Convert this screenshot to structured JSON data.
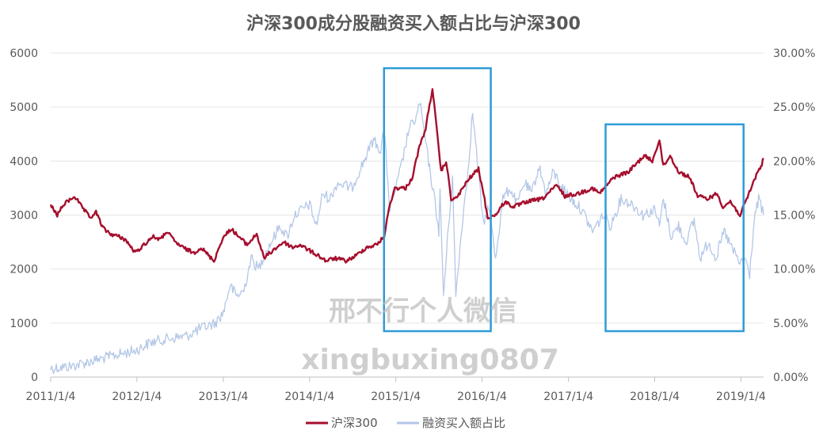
{
  "chart_data": {
    "type": "line",
    "title": "沪深300成分股融资买入额占比与沪深300",
    "x_ticks": [
      "2011/1/4",
      "2012/1/4",
      "2013/1/4",
      "2014/1/4",
      "2015/1/4",
      "2016/1/4",
      "2017/1/4",
      "2018/1/4",
      "2019/1/4"
    ],
    "x_range": [
      "2011/1/4",
      "2019/4/10"
    ],
    "y_left": {
      "range": [
        0,
        6000
      ],
      "ticks": [
        "0",
        "1000",
        "2000",
        "3000",
        "4000",
        "5000",
        "6000"
      ]
    },
    "y_right": {
      "range": [
        0,
        30
      ],
      "ticks": [
        "0.00%",
        "5.00%",
        "10.00%",
        "15.00%",
        "20.00%",
        "25.00%",
        "30.00%"
      ]
    },
    "legend_position": "bottom",
    "series": [
      {
        "name": "沪深300",
        "axis": "left",
        "color": "#a50f2d",
        "points": [
          [
            "2011/1/4",
            3180
          ],
          [
            "2011/2/1",
            3000
          ],
          [
            "2011/3/1",
            3200
          ],
          [
            "2011/4/15",
            3350
          ],
          [
            "2011/5/15",
            3150
          ],
          [
            "2011/6/20",
            2950
          ],
          [
            "2011/7/15",
            3050
          ],
          [
            "2011/8/15",
            2750
          ],
          [
            "2011/9/15",
            2650
          ],
          [
            "2011/10/20",
            2600
          ],
          [
            "2011/11/15",
            2550
          ],
          [
            "2011/12/28",
            2300
          ],
          [
            "2012/2/15",
            2500
          ],
          [
            "2012/3/10",
            2600
          ],
          [
            "2012/4/15",
            2550
          ],
          [
            "2012/5/8",
            2700
          ],
          [
            "2012/6/15",
            2500
          ],
          [
            "2012/7/15",
            2400
          ],
          [
            "2012/9/1",
            2300
          ],
          [
            "2012/10/1",
            2400
          ],
          [
            "2012/11/25",
            2150
          ],
          [
            "2012/12/30",
            2550
          ],
          [
            "2013/2/5",
            2750
          ],
          [
            "2013/3/10",
            2600
          ],
          [
            "2013/4/15",
            2450
          ],
          [
            "2013/5/25",
            2650
          ],
          [
            "2013/6/25",
            2200
          ],
          [
            "2013/7/20",
            2300
          ],
          [
            "2013/9/15",
            2500
          ],
          [
            "2013/10/25",
            2400
          ],
          [
            "2013/11/25",
            2450
          ],
          [
            "2013/12/31",
            2350
          ],
          [
            "2014/2/10",
            2250
          ],
          [
            "2014/3/15",
            2150
          ],
          [
            "2014/4/20",
            2200
          ],
          [
            "2014/6/10",
            2150
          ],
          [
            "2014/7/20",
            2250
          ],
          [
            "2014/9/1",
            2400
          ],
          [
            "2014/10/15",
            2450
          ],
          [
            "2014/11/15",
            2600
          ],
          [
            "2014/12/10",
            3200
          ],
          [
            "2014/12/31",
            3500
          ],
          [
            "2015/2/15",
            3500
          ],
          [
            "2015/3/15",
            3700
          ],
          [
            "2015/4/10",
            4200
          ],
          [
            "2015/5/10",
            4600
          ],
          [
            "2015/6/8",
            5350
          ],
          [
            "2015/6/28",
            4500
          ],
          [
            "2015/7/15",
            3800
          ],
          [
            "2015/8/5",
            4000
          ],
          [
            "2015/8/26",
            3300
          ],
          [
            "2015/9/15",
            3300
          ],
          [
            "2015/10/15",
            3500
          ],
          [
            "2015/11/15",
            3700
          ],
          [
            "2015/12/20",
            3850
          ],
          [
            "2016/1/10",
            3400
          ],
          [
            "2016/1/28",
            2950
          ],
          [
            "2016/3/1",
            3000
          ],
          [
            "2016/4/10",
            3250
          ],
          [
            "2016/5/15",
            3150
          ],
          [
            "2016/7/15",
            3250
          ],
          [
            "2016/9/15",
            3300
          ],
          [
            "2016/11/15",
            3550
          ],
          [
            "2016/12/20",
            3350
          ],
          [
            "2017/2/15",
            3400
          ],
          [
            "2017/4/15",
            3500
          ],
          [
            "2017/5/15",
            3400
          ],
          [
            "2017/7/15",
            3700
          ],
          [
            "2017/9/15",
            3800
          ],
          [
            "2017/11/20",
            4100
          ],
          [
            "2017/12/25",
            4000
          ],
          [
            "2018/1/24",
            4400
          ],
          [
            "2018/2/9",
            3900
          ],
          [
            "2018/3/10",
            4100
          ],
          [
            "2018/4/15",
            3800
          ],
          [
            "2018/6/1",
            3700
          ],
          [
            "2018/7/5",
            3350
          ],
          [
            "2018/8/15",
            3300
          ],
          [
            "2018/9/25",
            3400
          ],
          [
            "2018/10/20",
            3150
          ],
          [
            "2018/11/20",
            3250
          ],
          [
            "2018/12/31",
            3000
          ],
          [
            "2019/1/20",
            3200
          ],
          [
            "2019/2/25",
            3600
          ],
          [
            "2019/3/15",
            3800
          ],
          [
            "2019/3/30",
            3900
          ],
          [
            "2019/4/10",
            4050
          ]
        ]
      },
      {
        "name": "融资买入额占比",
        "axis": "right",
        "color": "#b4c7e7",
        "points": [
          [
            "2011/1/4",
            0.8
          ],
          [
            "2011/4/1",
            1.0
          ],
          [
            "2011/7/1",
            1.5
          ],
          [
            "2011/10/1",
            2.0
          ],
          [
            "2012/1/4",
            2.5
          ],
          [
            "2012/3/1",
            3.2
          ],
          [
            "2012/5/1",
            3.5
          ],
          [
            "2012/8/1",
            3.8
          ],
          [
            "2012/10/1",
            4.5
          ],
          [
            "2012/12/1",
            5.0
          ],
          [
            "2013/1/4",
            6.0
          ],
          [
            "2013/2/1",
            8.5
          ],
          [
            "2013/3/1",
            7.5
          ],
          [
            "2013/4/1",
            8.0
          ],
          [
            "2013/5/1",
            11.0
          ],
          [
            "2013/6/1",
            10.0
          ],
          [
            "2013/7/1",
            11.5
          ],
          [
            "2013/9/1",
            14.0
          ],
          [
            "2013/10/1",
            13.0
          ],
          [
            "2013/11/1",
            15.0
          ],
          [
            "2014/1/4",
            16.0
          ],
          [
            "2014/2/1",
            14.0
          ],
          [
            "2014/3/1",
            17.0
          ],
          [
            "2014/4/1",
            16.5
          ],
          [
            "2014/5/1",
            18.0
          ],
          [
            "2014/7/1",
            17.5
          ],
          [
            "2014/8/1",
            19.0
          ],
          [
            "2014/9/1",
            20.5
          ],
          [
            "2014/10/1",
            22.0
          ],
          [
            "2014/11/1",
            21.0
          ],
          [
            "2014/11/15",
            23.0
          ],
          [
            "2014/12/10",
            15.5
          ],
          [
            "2015/1/4",
            17.5
          ],
          [
            "2015/2/1",
            20.0
          ],
          [
            "2015/3/1",
            23.0
          ],
          [
            "2015/4/1",
            24.0
          ],
          [
            "2015/4/15",
            25.5
          ],
          [
            "2015/5/15",
            21.0
          ],
          [
            "2015/6/20",
            16.0
          ],
          [
            "2015/7/5",
            13.5
          ],
          [
            "2015/7/10",
            17.0
          ],
          [
            "2015/7/25",
            7.5
          ],
          [
            "2015/8/15",
            14.0
          ],
          [
            "2015/9/1",
            18.5
          ],
          [
            "2015/9/15",
            7.5
          ],
          [
            "2015/10/15",
            15.0
          ],
          [
            "2015/11/1",
            18.0
          ],
          [
            "2015/11/25",
            24.5
          ],
          [
            "2015/12/15",
            20.0
          ],
          [
            "2016/1/10",
            14.0
          ],
          [
            "2016/2/1",
            16.0
          ],
          [
            "2016/3/1",
            11.0
          ],
          [
            "2016/4/1",
            16.5
          ],
          [
            "2016/5/1",
            17.5
          ],
          [
            "2016/6/1",
            16.0
          ],
          [
            "2016/7/1",
            18.0
          ],
          [
            "2016/8/1",
            17.0
          ],
          [
            "2016/9/1",
            19.5
          ],
          [
            "2016/10/1",
            17.0
          ],
          [
            "2016/11/1",
            19.0
          ],
          [
            "2016/12/10",
            17.5
          ],
          [
            "2017/1/15",
            16.5
          ],
          [
            "2017/3/1",
            15.5
          ],
          [
            "2017/4/15",
            13.5
          ],
          [
            "2017/6/1",
            15.0
          ],
          [
            "2017/7/1",
            14.0
          ],
          [
            "2017/8/15",
            16.5
          ],
          [
            "2017/10/1",
            16.0
          ],
          [
            "2017/11/15",
            15.0
          ],
          [
            "2018/1/4",
            15.5
          ],
          [
            "2018/1/24",
            14.0
          ],
          [
            "2018/2/10",
            16.5
          ],
          [
            "2018/3/15",
            13.0
          ],
          [
            "2018/4/15",
            14.0
          ],
          [
            "2018/5/15",
            12.5
          ],
          [
            "2018/6/20",
            14.5
          ],
          [
            "2018/7/15",
            11.0
          ],
          [
            "2018/8/20",
            12.5
          ],
          [
            "2018/9/20",
            11.0
          ],
          [
            "2018/10/25",
            13.5
          ],
          [
            "2018/11/25",
            12.0
          ],
          [
            "2018/12/31",
            10.5
          ],
          [
            "2019/1/20",
            11.0
          ],
          [
            "2019/2/10",
            9.5
          ],
          [
            "2019/3/1",
            14.5
          ],
          [
            "2019/3/20",
            16.5
          ],
          [
            "2019/4/10",
            15.0
          ]
        ]
      }
    ],
    "annotations": [
      {
        "type": "rect",
        "color": "#2e9bd6",
        "x_range": [
          "2014/11/15",
          "2016/2/10"
        ],
        "y_range": [
          850,
          5720
        ]
      },
      {
        "type": "rect",
        "color": "#2e9bd6",
        "x_range": [
          "2017/6/10",
          "2019/1/15"
        ],
        "y_range": [
          850,
          4680
        ]
      }
    ],
    "watermarks": [
      "邢不行个人微信",
      "xingbuxing0807"
    ]
  }
}
